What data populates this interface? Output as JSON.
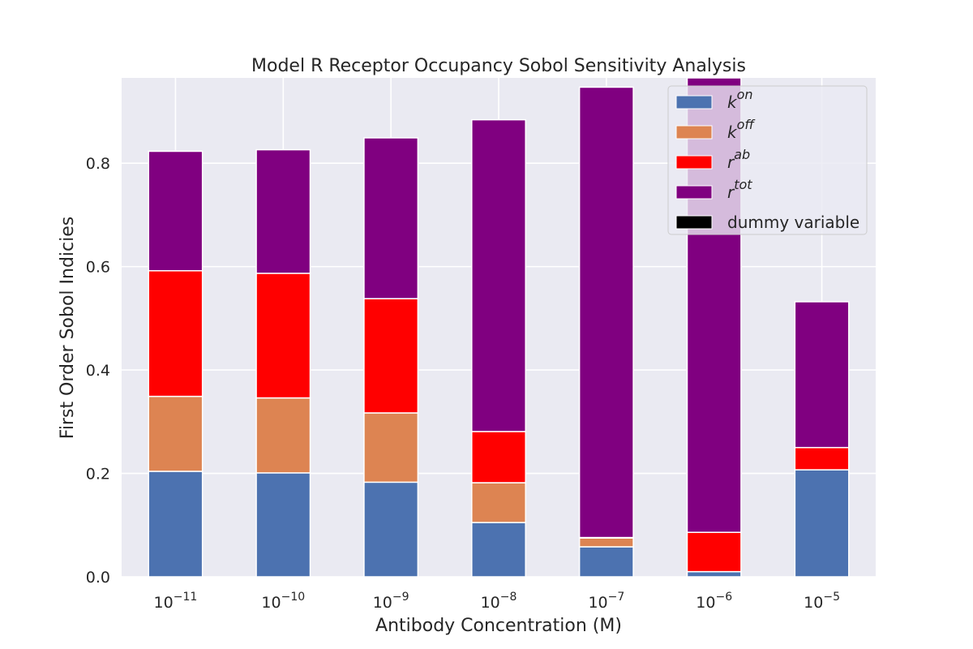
{
  "chart_data": {
    "type": "bar",
    "stacked": true,
    "title": "Model R Receptor Occupancy Sobol Sensitivity Analysis",
    "xlabel": "Antibody Concentration (M)",
    "ylabel": "First Order Sobol Indicies",
    "categories": [
      {
        "base": "10",
        "exp": "−11"
      },
      {
        "base": "10",
        "exp": "−10"
      },
      {
        "base": "10",
        "exp": "−9"
      },
      {
        "base": "10",
        "exp": "−8"
      },
      {
        "base": "10",
        "exp": "−7"
      },
      {
        "base": "10",
        "exp": "−6"
      },
      {
        "base": "10",
        "exp": "−5"
      }
    ],
    "ylim": [
      0,
      0.965
    ],
    "yticks": [
      "0.0",
      "0.2",
      "0.4",
      "0.6",
      "0.8"
    ],
    "grid": true,
    "legend_position": "top-right",
    "series": [
      {
        "name": {
          "base": "k",
          "sup": "on"
        },
        "color": "#4c72b0",
        "values": [
          0.204,
          0.201,
          0.183,
          0.105,
          0.058,
          0.01,
          0.207
        ]
      },
      {
        "name": {
          "base": "k",
          "sup": "off"
        },
        "color": "#dd8452",
        "values": [
          0.145,
          0.145,
          0.134,
          0.077,
          0.017,
          0.0,
          0.0
        ]
      },
      {
        "name": {
          "base": "r",
          "sup": "ab"
        },
        "color": "#ff0000",
        "values": [
          0.243,
          0.241,
          0.221,
          0.099,
          0.001,
          0.076,
          0.043
        ]
      },
      {
        "name": {
          "base": "r",
          "sup": "tot"
        },
        "color": "#800080",
        "values": [
          0.231,
          0.239,
          0.311,
          0.603,
          0.871,
          0.89,
          0.282
        ]
      },
      {
        "name": {
          "base": "dummy variable",
          "sup": ""
        },
        "color": "#000000",
        "values": [
          0.0,
          0.0,
          0.0,
          0.0,
          0.0,
          0.0,
          0.0
        ]
      }
    ]
  }
}
